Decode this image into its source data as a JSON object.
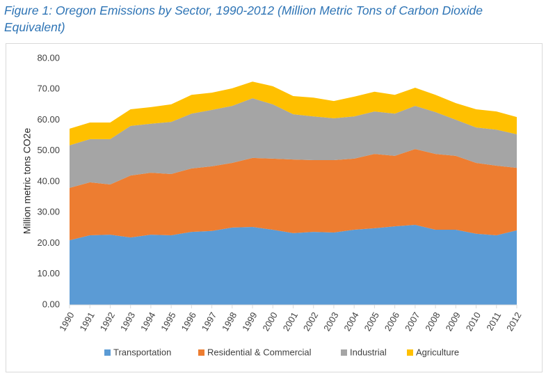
{
  "chart_data": {
    "type": "stacked-area",
    "title": "Figure 1: Oregon Emissions by Sector, 1990-2012 (Million Metric Tons of Carbon Dioxide Equivalent)",
    "y_label": "Million metric tons CO2e",
    "categories": [
      "1990",
      "1991",
      "1992",
      "1993",
      "1994",
      "1995",
      "1996",
      "1997",
      "1998",
      "1999",
      "2000",
      "2001",
      "2002",
      "2003",
      "2004",
      "2005",
      "2006",
      "2007",
      "2008",
      "2009",
      "2010",
      "2011",
      "2012"
    ],
    "series": [
      {
        "name": "Transportation",
        "color": "#5b9bd5",
        "values": [
          21.0,
          22.6,
          22.8,
          21.9,
          22.8,
          22.6,
          23.7,
          24.0,
          25.1,
          25.3,
          24.4,
          23.3,
          23.7,
          23.5,
          24.4,
          24.9,
          25.5,
          26.0,
          24.4,
          24.4,
          23.1,
          22.6,
          24.2
        ]
      },
      {
        "name": "Residential & Commercial",
        "color": "#ed7d31",
        "values": [
          17.0,
          17.2,
          16.3,
          20.1,
          20.1,
          19.9,
          20.6,
          21.0,
          21.0,
          22.4,
          23.1,
          23.9,
          23.3,
          23.5,
          23.1,
          24.1,
          22.9,
          24.6,
          24.6,
          24.0,
          23.0,
          22.6,
          20.3
        ]
      },
      {
        "name": "Industrial",
        "color": "#a5a5a5",
        "values": [
          13.8,
          14.0,
          14.7,
          16.1,
          15.9,
          16.9,
          17.8,
          18.3,
          18.5,
          19.4,
          17.6,
          14.7,
          14.2,
          13.6,
          13.7,
          13.8,
          13.7,
          14.0,
          13.6,
          11.7,
          11.5,
          11.7,
          10.9
        ]
      },
      {
        "name": "Agriculture",
        "color": "#ffc000",
        "values": [
          5.4,
          5.4,
          5.4,
          5.4,
          5.4,
          5.7,
          6.1,
          5.6,
          5.7,
          5.4,
          5.9,
          5.9,
          6.1,
          5.6,
          6.4,
          6.4,
          6.1,
          5.9,
          5.6,
          5.4,
          5.9,
          5.9,
          5.6
        ]
      }
    ],
    "ylim": [
      0,
      80
    ],
    "yticks": [
      {
        "value": 0,
        "label": "0.00"
      },
      {
        "value": 10,
        "label": "10.00"
      },
      {
        "value": 20,
        "label": "20.00"
      },
      {
        "value": 30,
        "label": "30.00"
      },
      {
        "value": 40,
        "label": "40.00"
      },
      {
        "value": 50,
        "label": "50.00"
      },
      {
        "value": 60,
        "label": "60.00"
      },
      {
        "value": 70,
        "label": "70.00"
      },
      {
        "value": 80,
        "label": "80.00"
      }
    ],
    "grid": false,
    "legend": "bottom"
  }
}
